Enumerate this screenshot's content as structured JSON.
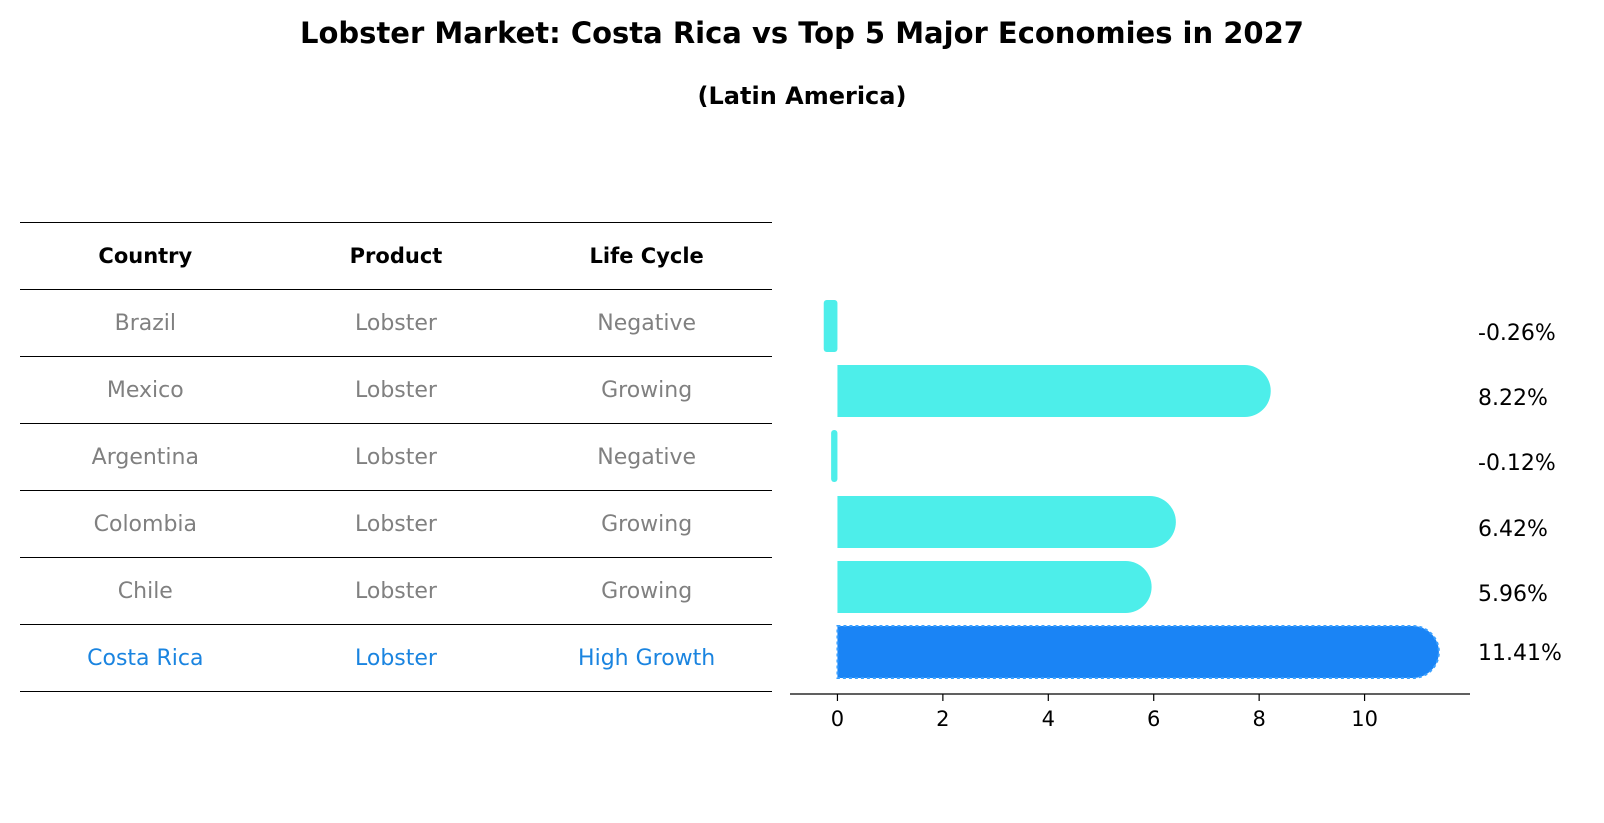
{
  "title": "Lobster Market: Costa Rica vs Top 5 Major Economies in 2027",
  "subtitle": "(Latin America)",
  "table": {
    "headers": [
      "Country",
      "Product",
      "Life Cycle"
    ],
    "rows": [
      [
        "Brazil",
        "Lobster",
        "Negative"
      ],
      [
        "Mexico",
        "Lobster",
        "Growing"
      ],
      [
        "Argentina",
        "Lobster",
        "Negative"
      ],
      [
        "Colombia",
        "Lobster",
        "Growing"
      ],
      [
        "Chile",
        "Lobster",
        "Growing"
      ],
      [
        "Costa Rica",
        "Lobster",
        "High Growth"
      ]
    ],
    "highlight_row": 5
  },
  "chart_data": {
    "type": "bar",
    "orientation": "horizontal",
    "categories": [
      "Brazil",
      "Mexico",
      "Argentina",
      "Colombia",
      "Chile",
      "Costa Rica"
    ],
    "values": [
      -0.26,
      8.22,
      -0.12,
      6.42,
      5.96,
      11.41
    ],
    "value_labels": [
      "-0.26%",
      "8.22%",
      "-0.12%",
      "6.42%",
      "5.96%",
      "11.41%"
    ],
    "xlim": [
      -0.9,
      12.0
    ],
    "xticks": [
      0,
      2,
      4,
      6,
      8,
      10
    ],
    "highlight_index": 5,
    "colors": {
      "bar": "#4deeea",
      "highlight": "#1a84f5",
      "highlight_text": "#1a84e0",
      "muted_text": "#808080"
    }
  }
}
